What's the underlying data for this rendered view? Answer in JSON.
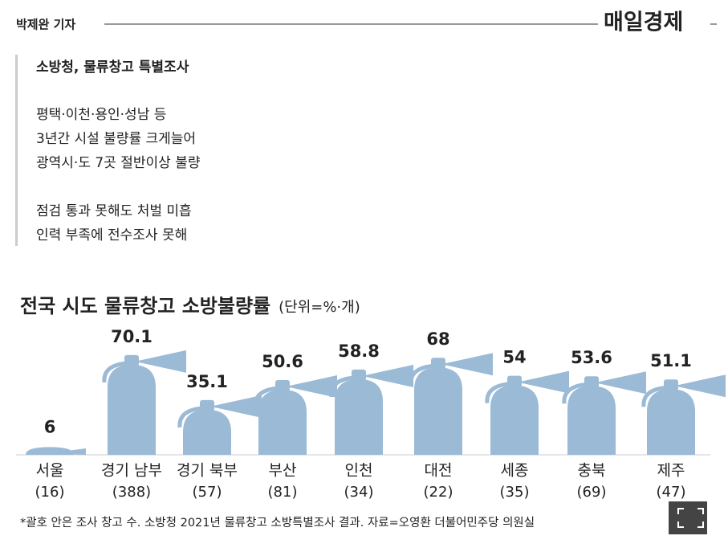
{
  "byline": "박제완 기자",
  "logo": "매일경제",
  "summary": {
    "headline": "소방청, 물류창고 특별조사",
    "paragraphs": [
      [
        "평택·이천·용인·성남 등",
        "3년간 시설 불량률 크게늘어",
        "광역시·도 7곳 절반이상 불량"
      ],
      [
        "점검 통과 못해도 처벌 미흡",
        "인력 부족에 전수조사 못해"
      ]
    ]
  },
  "chart_data": {
    "type": "bar",
    "title": "전국 시도 물류창고 소방불량률",
    "subtitle": "(단위=%·개)",
    "categories": [
      "서울",
      "경기 남부",
      "경기 북부",
      "부산",
      "인천",
      "대전",
      "세종",
      "충북",
      "제주"
    ],
    "category_notes": [
      "(16)",
      "(388)",
      "(57)",
      "(81)",
      "(34)",
      "(22)",
      "(35)",
      "(69)",
      "(47)"
    ],
    "values": [
      6,
      70.1,
      35.1,
      50.6,
      58.8,
      68,
      54,
      53.6,
      51.1
    ],
    "color": "#9bbad6",
    "note": "*괄호 안은 조사 창고 수. 소방청 2021년 물류창고 소방특별조사 결과. 자료=오영환 더불어민주당 의원실"
  }
}
